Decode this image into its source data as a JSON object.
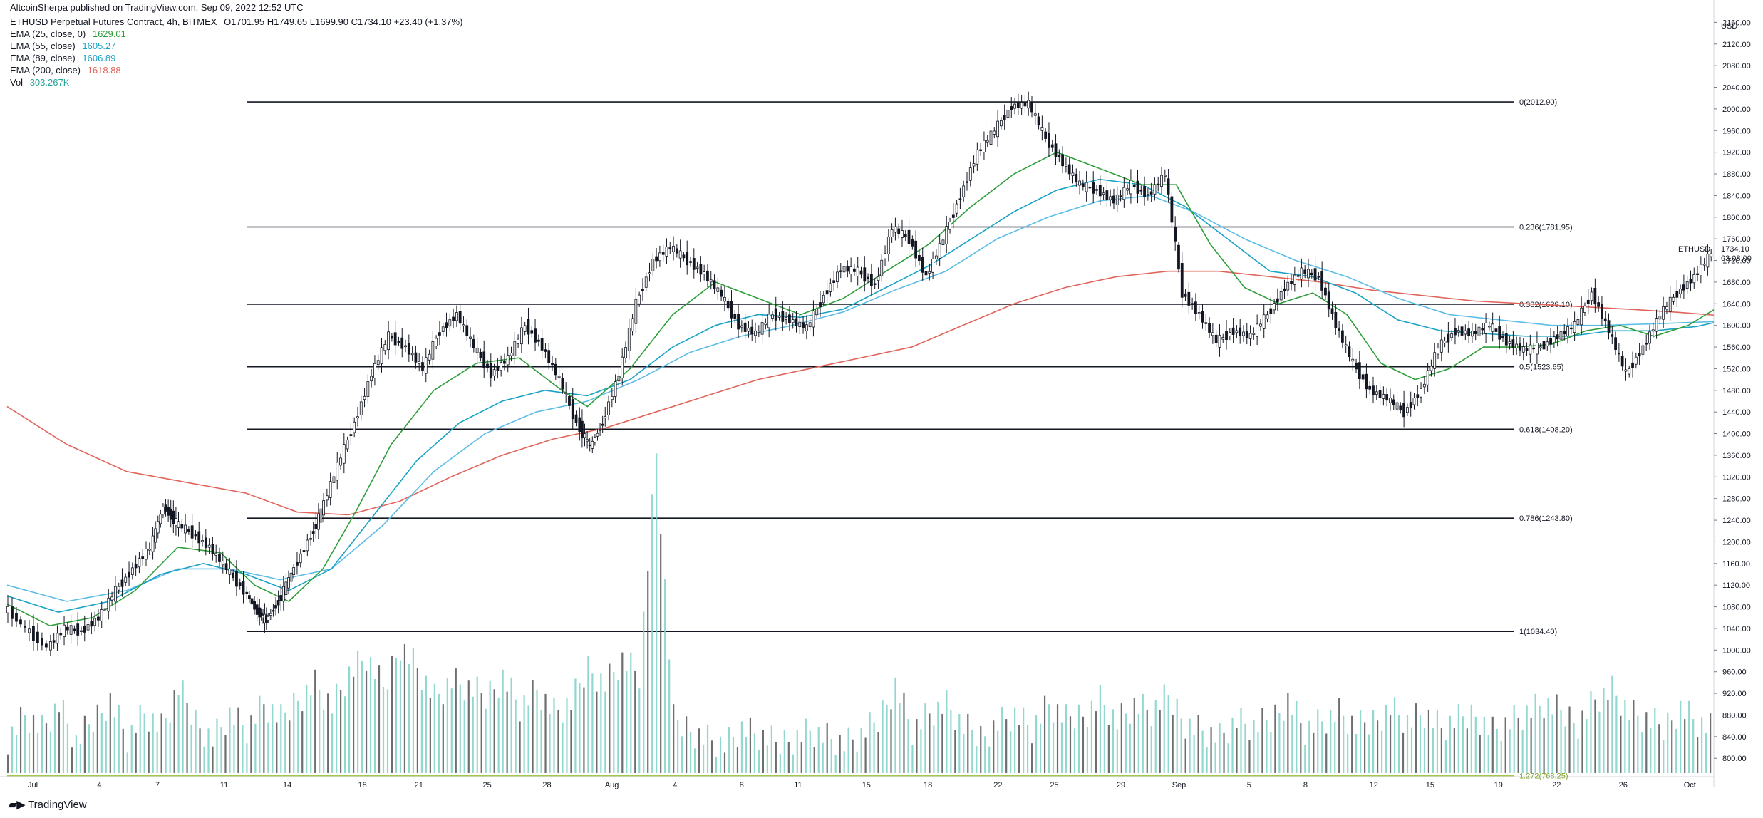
{
  "publisher": "AltcoinSherpa published on TradingView.com, Sep 09, 2022 12:52 UTC",
  "legend": {
    "symbol": "ETHUSD Perpetual Futures Contract, 4h, BITMEX",
    "ohlc": "O1701.95  H1749.65  L1699.90  C1734.10  +23.40 (+1.37%)",
    "ema25": {
      "label": "EMA (25, close, 0)",
      "value": "1629.01",
      "color": "#2e9e3a"
    },
    "ema55": {
      "label": "EMA (55, close)",
      "value": "1605.27",
      "color": "#1aa2c6"
    },
    "ema89": {
      "label": "EMA (89, close)",
      "value": "1606.89",
      "color": "#5bbde6"
    },
    "ema200": {
      "label": "EMA (200, close)",
      "value": "1618.88",
      "color": "#e0645a"
    },
    "vol": {
      "label": "Vol",
      "value": "303.267K",
      "color": "#26a69a"
    }
  },
  "footer": {
    "brand": "TradingView"
  },
  "chart_data": {
    "type": "candlestick",
    "currency": "USD",
    "symbol": "ETHUSD",
    "last_price": "1734.10",
    "countdown": "03:08:00",
    "ylim": [
      770,
      2175
    ],
    "y_ticks": [
      "800.00",
      "840.00",
      "880.00",
      "920.00",
      "960.00",
      "1000.00",
      "1040.00",
      "1080.00",
      "1120.00",
      "1160.00",
      "1200.00",
      "1240.00",
      "1280.00",
      "1320.00",
      "1360.00",
      "1400.00",
      "1440.00",
      "1480.00",
      "1520.00",
      "1560.00",
      "1600.00",
      "1640.00",
      "1680.00",
      "1720.00",
      "1760.00",
      "1800.00",
      "1840.00",
      "1880.00",
      "1920.00",
      "1960.00",
      "2000.00",
      "2040.00",
      "2080.00",
      "2120.00",
      "2160.00"
    ],
    "x_ticks": [
      "Jul",
      "4",
      "7",
      "11",
      "14",
      "18",
      "21",
      "25",
      "28",
      "Aug",
      "4",
      "8",
      "11",
      "15",
      "18",
      "22",
      "25",
      "29",
      "Sep",
      "5",
      "8",
      "12",
      "15",
      "19",
      "22",
      "26",
      "Oct"
    ],
    "fib_levels": [
      {
        "label": "0(2012.90)",
        "value": 2012.9
      },
      {
        "label": "0.236(1781.95)",
        "value": 1781.95
      },
      {
        "label": "0.382(1639.10)",
        "value": 1639.1
      },
      {
        "label": "0.5(1523.65)",
        "value": 1523.65
      },
      {
        "label": "0.618(1408.20)",
        "value": 1408.2
      },
      {
        "label": "0.786(1243.80)",
        "value": 1243.8
      },
      {
        "label": "1(1034.40)",
        "value": 1034.4
      },
      {
        "label": "1.272(768.25)",
        "value": 768.25
      }
    ],
    "price_path": [
      [
        0,
        1080
      ],
      [
        5,
        1040
      ],
      [
        10,
        1005
      ],
      [
        14,
        1040
      ],
      [
        18,
        1035
      ],
      [
        22,
        1060
      ],
      [
        26,
        1110
      ],
      [
        30,
        1150
      ],
      [
        34,
        1190
      ],
      [
        37,
        1265
      ],
      [
        40,
        1235
      ],
      [
        44,
        1215
      ],
      [
        48,
        1190
      ],
      [
        52,
        1150
      ],
      [
        56,
        1110
      ],
      [
        59,
        1070
      ],
      [
        61,
        1055
      ],
      [
        64,
        1090
      ],
      [
        67,
        1140
      ],
      [
        71,
        1200
      ],
      [
        74,
        1255
      ],
      [
        78,
        1340
      ],
      [
        82,
        1420
      ],
      [
        86,
        1510
      ],
      [
        90,
        1580
      ],
      [
        94,
        1560
      ],
      [
        98,
        1520
      ],
      [
        102,
        1590
      ],
      [
        106,
        1620
      ],
      [
        110,
        1560
      ],
      [
        114,
        1510
      ],
      [
        118,
        1540
      ],
      [
        122,
        1600
      ],
      [
        126,
        1560
      ],
      [
        130,
        1500
      ],
      [
        134,
        1420
      ],
      [
        137,
        1375
      ],
      [
        140,
        1420
      ],
      [
        144,
        1510
      ],
      [
        148,
        1640
      ],
      [
        152,
        1720
      ],
      [
        156,
        1745
      ],
      [
        160,
        1720
      ],
      [
        164,
        1695
      ],
      [
        168,
        1655
      ],
      [
        172,
        1600
      ],
      [
        176,
        1585
      ],
      [
        180,
        1620
      ],
      [
        184,
        1610
      ],
      [
        188,
        1595
      ],
      [
        192,
        1655
      ],
      [
        196,
        1705
      ],
      [
        200,
        1700
      ],
      [
        204,
        1675
      ],
      [
        208,
        1780
      ],
      [
        212,
        1760
      ],
      [
        216,
        1690
      ],
      [
        220,
        1760
      ],
      [
        224,
        1840
      ],
      [
        228,
        1920
      ],
      [
        232,
        1960
      ],
      [
        236,
        2005
      ],
      [
        240,
        2010
      ],
      [
        244,
        1945
      ],
      [
        248,
        1900
      ],
      [
        252,
        1860
      ],
      [
        256,
        1850
      ],
      [
        260,
        1830
      ],
      [
        264,
        1860
      ],
      [
        268,
        1840
      ],
      [
        272,
        1880
      ],
      [
        276,
        1660
      ],
      [
        280,
        1620
      ],
      [
        284,
        1570
      ],
      [
        288,
        1590
      ],
      [
        292,
        1580
      ],
      [
        296,
        1620
      ],
      [
        300,
        1670
      ],
      [
        304,
        1700
      ],
      [
        308,
        1690
      ],
      [
        312,
        1600
      ],
      [
        316,
        1530
      ],
      [
        320,
        1480
      ],
      [
        324,
        1465
      ],
      [
        328,
        1440
      ],
      [
        332,
        1480
      ],
      [
        336,
        1560
      ],
      [
        340,
        1590
      ],
      [
        344,
        1585
      ],
      [
        348,
        1600
      ],
      [
        352,
        1570
      ],
      [
        356,
        1555
      ],
      [
        360,
        1560
      ],
      [
        364,
        1580
      ],
      [
        368,
        1600
      ],
      [
        372,
        1660
      ],
      [
        376,
        1590
      ],
      [
        380,
        1510
      ],
      [
        384,
        1560
      ],
      [
        388,
        1620
      ],
      [
        392,
        1660
      ],
      [
        396,
        1690
      ],
      [
        400,
        1734
      ]
    ],
    "ema25_path": [
      [
        0,
        1085
      ],
      [
        10,
        1045
      ],
      [
        20,
        1060
      ],
      [
        30,
        1110
      ],
      [
        40,
        1190
      ],
      [
        50,
        1180
      ],
      [
        58,
        1120
      ],
      [
        66,
        1090
      ],
      [
        74,
        1150
      ],
      [
        82,
        1260
      ],
      [
        90,
        1380
      ],
      [
        100,
        1480
      ],
      [
        110,
        1530
      ],
      [
        120,
        1540
      ],
      [
        130,
        1480
      ],
      [
        136,
        1450
      ],
      [
        146,
        1520
      ],
      [
        156,
        1620
      ],
      [
        166,
        1680
      ],
      [
        176,
        1650
      ],
      [
        186,
        1620
      ],
      [
        196,
        1650
      ],
      [
        206,
        1700
      ],
      [
        216,
        1750
      ],
      [
        226,
        1820
      ],
      [
        236,
        1880
      ],
      [
        246,
        1920
      ],
      [
        256,
        1890
      ],
      [
        266,
        1860
      ],
      [
        274,
        1860
      ],
      [
        282,
        1750
      ],
      [
        290,
        1670
      ],
      [
        298,
        1640
      ],
      [
        306,
        1660
      ],
      [
        314,
        1620
      ],
      [
        322,
        1530
      ],
      [
        330,
        1500
      ],
      [
        338,
        1520
      ],
      [
        346,
        1560
      ],
      [
        354,
        1560
      ],
      [
        362,
        1565
      ],
      [
        370,
        1590
      ],
      [
        378,
        1600
      ],
      [
        386,
        1580
      ],
      [
        394,
        1600
      ],
      [
        400,
        1629
      ]
    ],
    "ema55_path": [
      [
        0,
        1100
      ],
      [
        12,
        1070
      ],
      [
        24,
        1090
      ],
      [
        36,
        1140
      ],
      [
        46,
        1160
      ],
      [
        56,
        1140
      ],
      [
        66,
        1110
      ],
      [
        76,
        1150
      ],
      [
        86,
        1250
      ],
      [
        96,
        1350
      ],
      [
        106,
        1420
      ],
      [
        116,
        1460
      ],
      [
        126,
        1480
      ],
      [
        136,
        1470
      ],
      [
        146,
        1500
      ],
      [
        156,
        1560
      ],
      [
        166,
        1600
      ],
      [
        176,
        1620
      ],
      [
        186,
        1615
      ],
      [
        196,
        1630
      ],
      [
        206,
        1670
      ],
      [
        216,
        1710
      ],
      [
        226,
        1760
      ],
      [
        236,
        1810
      ],
      [
        246,
        1850
      ],
      [
        256,
        1870
      ],
      [
        266,
        1860
      ],
      [
        276,
        1820
      ],
      [
        286,
        1760
      ],
      [
        296,
        1700
      ],
      [
        306,
        1690
      ],
      [
        316,
        1660
      ],
      [
        326,
        1610
      ],
      [
        336,
        1590
      ],
      [
        346,
        1585
      ],
      [
        356,
        1580
      ],
      [
        366,
        1580
      ],
      [
        376,
        1590
      ],
      [
        386,
        1590
      ],
      [
        396,
        1598
      ],
      [
        400,
        1605
      ]
    ],
    "ema89_path": [
      [
        0,
        1120
      ],
      [
        14,
        1090
      ],
      [
        28,
        1110
      ],
      [
        40,
        1150
      ],
      [
        52,
        1150
      ],
      [
        64,
        1130
      ],
      [
        76,
        1150
      ],
      [
        88,
        1230
      ],
      [
        100,
        1330
      ],
      [
        112,
        1400
      ],
      [
        124,
        1440
      ],
      [
        136,
        1460
      ],
      [
        148,
        1500
      ],
      [
        160,
        1550
      ],
      [
        172,
        1580
      ],
      [
        184,
        1600
      ],
      [
        196,
        1625
      ],
      [
        208,
        1665
      ],
      [
        220,
        1700
      ],
      [
        232,
        1760
      ],
      [
        244,
        1800
      ],
      [
        256,
        1830
      ],
      [
        268,
        1840
      ],
      [
        278,
        1810
      ],
      [
        290,
        1760
      ],
      [
        302,
        1720
      ],
      [
        314,
        1690
      ],
      [
        326,
        1650
      ],
      [
        338,
        1620
      ],
      [
        350,
        1610
      ],
      [
        362,
        1600
      ],
      [
        374,
        1600
      ],
      [
        386,
        1603
      ],
      [
        400,
        1607
      ]
    ],
    "ema200_path": [
      [
        0,
        1450
      ],
      [
        14,
        1380
      ],
      [
        28,
        1330
      ],
      [
        42,
        1310
      ],
      [
        56,
        1290
      ],
      [
        68,
        1255
      ],
      [
        80,
        1250
      ],
      [
        92,
        1275
      ],
      [
        104,
        1320
      ],
      [
        116,
        1360
      ],
      [
        128,
        1390
      ],
      [
        140,
        1410
      ],
      [
        152,
        1440
      ],
      [
        164,
        1470
      ],
      [
        176,
        1500
      ],
      [
        188,
        1520
      ],
      [
        200,
        1540
      ],
      [
        212,
        1560
      ],
      [
        224,
        1600
      ],
      [
        236,
        1640
      ],
      [
        248,
        1670
      ],
      [
        260,
        1690
      ],
      [
        272,
        1700
      ],
      [
        284,
        1700
      ],
      [
        296,
        1690
      ],
      [
        308,
        1680
      ],
      [
        320,
        1665
      ],
      [
        332,
        1655
      ],
      [
        344,
        1645
      ],
      [
        356,
        1640
      ],
      [
        368,
        1635
      ],
      [
        380,
        1630
      ],
      [
        392,
        1624
      ],
      [
        400,
        1619
      ]
    ],
    "volume_path": [
      [
        0,
        20
      ],
      [
        4,
        35
      ],
      [
        8,
        25
      ],
      [
        12,
        40
      ],
      [
        16,
        15
      ],
      [
        20,
        30
      ],
      [
        24,
        45
      ],
      [
        28,
        20
      ],
      [
        32,
        35
      ],
      [
        36,
        25
      ],
      [
        40,
        50
      ],
      [
        44,
        30
      ],
      [
        48,
        20
      ],
      [
        52,
        35
      ],
      [
        56,
        25
      ],
      [
        60,
        40
      ],
      [
        64,
        30
      ],
      [
        68,
        45
      ],
      [
        72,
        55
      ],
      [
        76,
        40
      ],
      [
        80,
        60
      ],
      [
        84,
        70
      ],
      [
        88,
        50
      ],
      [
        92,
        80
      ],
      [
        96,
        65
      ],
      [
        100,
        45
      ],
      [
        104,
        55
      ],
      [
        108,
        50
      ],
      [
        112,
        45
      ],
      [
        116,
        60
      ],
      [
        120,
        40
      ],
      [
        124,
        50
      ],
      [
        128,
        35
      ],
      [
        132,
        40
      ],
      [
        136,
        65
      ],
      [
        140,
        55
      ],
      [
        144,
        70
      ],
      [
        148,
        60
      ],
      [
        152,
        200
      ],
      [
        156,
        30
      ],
      [
        160,
        25
      ],
      [
        164,
        20
      ],
      [
        168,
        15
      ],
      [
        172,
        25
      ],
      [
        176,
        20
      ],
      [
        180,
        15
      ],
      [
        184,
        20
      ],
      [
        188,
        25
      ],
      [
        192,
        20
      ],
      [
        196,
        15
      ],
      [
        200,
        20
      ],
      [
        204,
        30
      ],
      [
        208,
        55
      ],
      [
        212,
        25
      ],
      [
        216,
        35
      ],
      [
        220,
        40
      ],
      [
        224,
        25
      ],
      [
        228,
        20
      ],
      [
        232,
        30
      ],
      [
        236,
        35
      ],
      [
        240,
        25
      ],
      [
        244,
        40
      ],
      [
        248,
        30
      ],
      [
        252,
        35
      ],
      [
        256,
        45
      ],
      [
        260,
        30
      ],
      [
        264,
        40
      ],
      [
        268,
        35
      ],
      [
        272,
        45
      ],
      [
        276,
        30
      ],
      [
        280,
        25
      ],
      [
        284,
        20
      ],
      [
        288,
        30
      ],
      [
        292,
        25
      ],
      [
        296,
        30
      ],
      [
        300,
        45
      ],
      [
        304,
        25
      ],
      [
        308,
        30
      ],
      [
        312,
        35
      ],
      [
        316,
        25
      ],
      [
        320,
        30
      ],
      [
        324,
        40
      ],
      [
        328,
        30
      ],
      [
        332,
        35
      ],
      [
        336,
        25
      ],
      [
        340,
        30
      ],
      [
        344,
        35
      ],
      [
        348,
        25
      ],
      [
        352,
        30
      ],
      [
        356,
        35
      ],
      [
        360,
        40
      ],
      [
        364,
        35
      ],
      [
        368,
        30
      ],
      [
        372,
        45
      ],
      [
        376,
        50
      ],
      [
        380,
        35
      ],
      [
        384,
        30
      ],
      [
        388,
        25
      ],
      [
        392,
        40
      ],
      [
        396,
        30
      ],
      [
        400,
        25
      ]
    ]
  }
}
